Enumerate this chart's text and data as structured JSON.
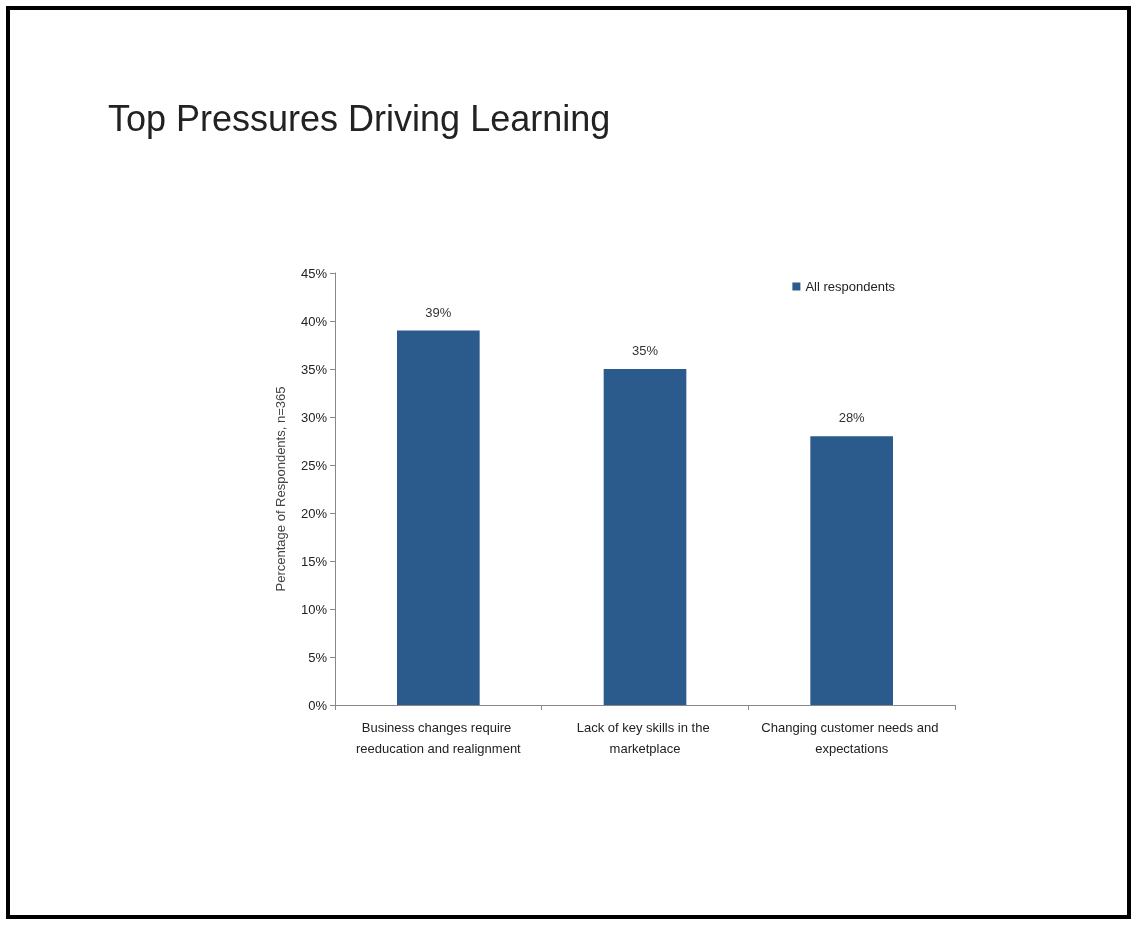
{
  "chart_data": {
    "type": "bar",
    "title": "Top Pressures Driving Learning",
    "ylabel": "Percentage of Respondents, n=365",
    "categories": [
      "Business changes require reeducation and realignment",
      "Lack of key skills in the marketplace",
      "Changing customer needs and expectations"
    ],
    "series": [
      {
        "name": "All respondents",
        "color": "#2a5b8c",
        "values": [
          39,
          35,
          28
        ],
        "value_labels": [
          "39%",
          "35%",
          "28%"
        ]
      }
    ],
    "ylim": [
      0,
      45
    ],
    "yticks": [
      {
        "value": 0,
        "label": "0%"
      },
      {
        "value": 5,
        "label": "5%"
      },
      {
        "value": 10,
        "label": "10%"
      },
      {
        "value": 15,
        "label": "15%"
      },
      {
        "value": 20,
        "label": "20%"
      },
      {
        "value": 25,
        "label": "25%"
      },
      {
        "value": 30,
        "label": "30%"
      },
      {
        "value": 35,
        "label": "35%"
      },
      {
        "value": 40,
        "label": "40%"
      },
      {
        "value": 45,
        "label": "45%"
      }
    ],
    "grid": false,
    "legend": "top right"
  }
}
